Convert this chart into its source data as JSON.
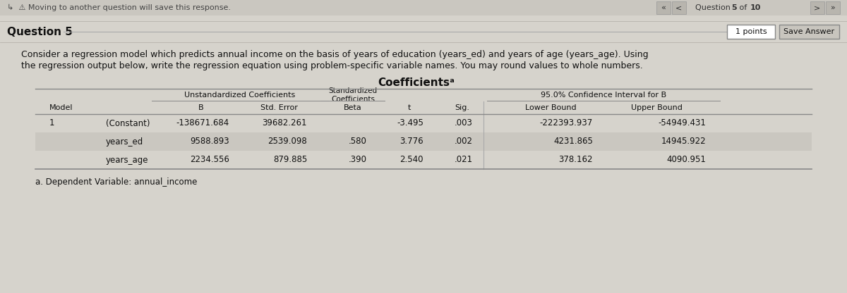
{
  "bg_color": "#d6d3cc",
  "top_nav_bg": "#cac7c0",
  "top_bar_text": "↳  ⚠ Moving to another question will save this response.",
  "nav_text_prefix": "« <  Question ",
  "nav_text_bold": "5",
  "nav_text_mid": " of ",
  "nav_text_bold2": "10",
  "nav_text_suffix": "  > »",
  "question_label": "Question 5",
  "points_label": "1 points",
  "save_btn": "Save Answer",
  "question_text_line1": "Consider a regression model which predicts annual income on the basis of years of education (years_ed) and years of age (years_age). Using",
  "question_text_line2": "the regression output below, write the regression equation using problem-specific variable names. You may round values to whole numbers.",
  "table_title": "Coefficientsᵃ",
  "col_headers": {
    "model": "Model",
    "unstd_header": "Unstandardized Coefficients",
    "b": "B",
    "std_error": "Std. Error",
    "std_coeff_header": "Standardized\nCoefficients",
    "beta": "Beta",
    "t": "t",
    "sig": "Sig.",
    "ci_header": "95.0% Confidence Interval for B",
    "lower": "Lower Bound",
    "upper": "Upper Bound"
  },
  "rows": [
    {
      "model": "1",
      "row_label": "(Constant)",
      "B": "-138671.684",
      "std_error": "39682.261",
      "beta": "",
      "t": "-3.495",
      "sig": ".003",
      "lower": "-222393.937",
      "upper": "-54949.431"
    },
    {
      "model": "",
      "row_label": "years_ed",
      "B": "9588.893",
      "std_error": "2539.098",
      "beta": ".580",
      "t": "3.776",
      "sig": ".002",
      "lower": "4231.865",
      "upper": "14945.922"
    },
    {
      "model": "",
      "row_label": "years_age",
      "B": "2234.556",
      "std_error": "879.885",
      "beta": ".390",
      "t": "2.540",
      "sig": ".021",
      "lower": "378.162",
      "upper": "4090.951"
    }
  ],
  "footnote": "a. Dependent Variable: annual_income",
  "row0_bg": "#d6d3cc",
  "row1_bg": "#cac7c0",
  "row2_bg": "#d6d3cc",
  "nav_btn_bg": "#b8b5ae",
  "save_btn_bg": "#c8c5be",
  "pts_btn_bg": "#ffffff"
}
